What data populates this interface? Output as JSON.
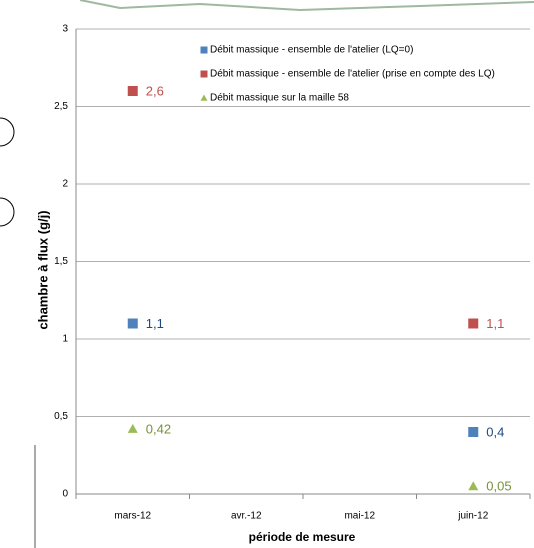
{
  "chart_data": {
    "type": "scatter",
    "y_label": "chambre à flux (g/j)",
    "x_label": "période de mesure",
    "categories": [
      "mars-12",
      "avr.-12",
      "mai-12",
      "juin-12"
    ],
    "ylim": [
      0,
      3
    ],
    "yticks": [
      0,
      {
        "value": 0.5,
        "label": "0,5"
      },
      1,
      {
        "value": 1.5,
        "label": "1,5"
      },
      2,
      {
        "value": 2.5,
        "label": "2,5"
      },
      3
    ],
    "grid": true,
    "legend": "top-right",
    "series": [
      {
        "name": "Débit massique - ensemble de l'atelier (LQ=0)",
        "color": "#4f81bd",
        "label_color": "#1f497d",
        "marker": "square",
        "values": [
          1.1,
          null,
          null,
          0.4
        ],
        "value_labels": [
          "1,1",
          null,
          null,
          "0,4"
        ]
      },
      {
        "name": "Débit massique - ensemble de l'atelier (prise en compte des LQ)",
        "color": "#c0504d",
        "label_color": "#c0504d",
        "marker": "square",
        "values": [
          2.6,
          null,
          null,
          1.1
        ],
        "value_labels": [
          "2,6",
          null,
          null,
          "1,1"
        ]
      },
      {
        "name": "Débit massique sur la maille 58",
        "color": "#9bbb59",
        "label_color": "#76923c",
        "marker": "triangle",
        "values": [
          0.42,
          null,
          null,
          0.05
        ],
        "value_labels": [
          "0,42",
          null,
          null,
          "0,05"
        ]
      }
    ]
  }
}
